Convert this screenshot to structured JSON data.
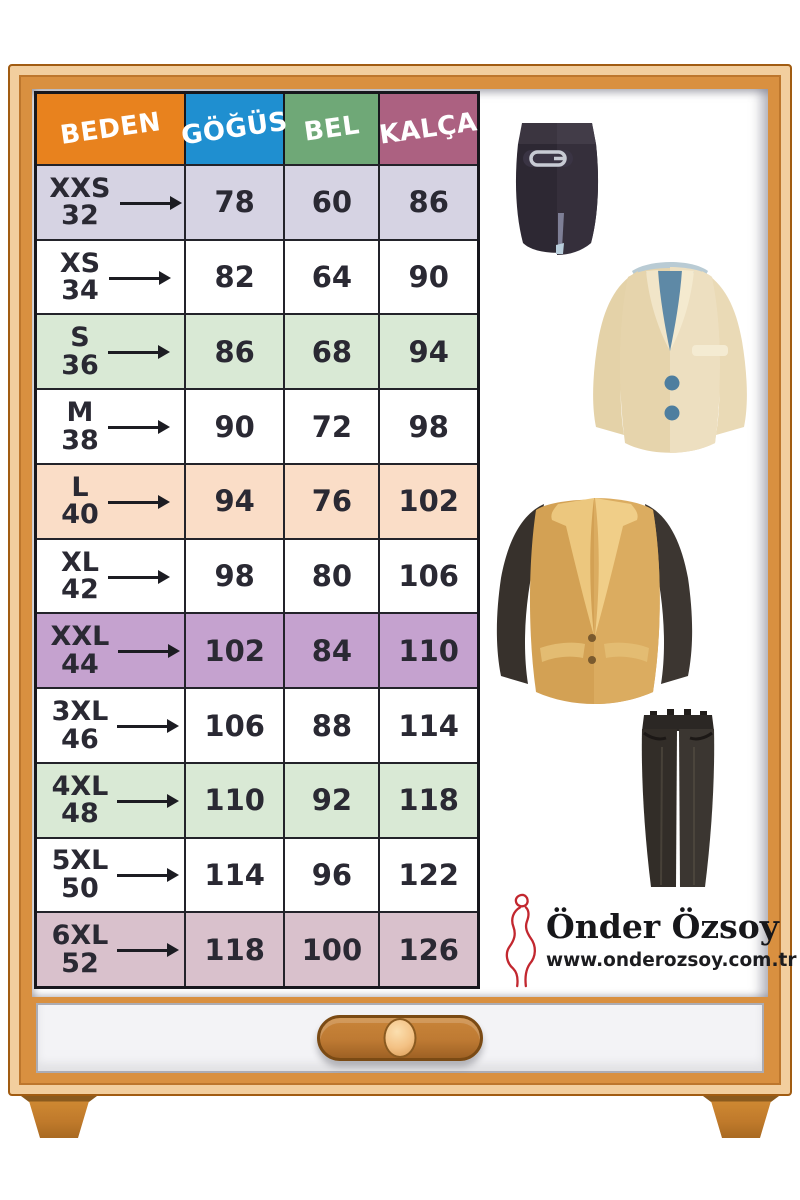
{
  "chart_data": {
    "type": "table",
    "columns": [
      "BEDEN",
      "GÖĞÜS",
      "BEL",
      "KALÇA"
    ],
    "rows": [
      [
        "XXS / 32",
        78,
        60,
        86
      ],
      [
        "XS / 34",
        82,
        64,
        90
      ],
      [
        "S / 36",
        86,
        68,
        94
      ],
      [
        "M / 38",
        90,
        72,
        98
      ],
      [
        "L / 40",
        94,
        76,
        102
      ],
      [
        "XL / 42",
        98,
        80,
        106
      ],
      [
        "XXL / 44",
        102,
        84,
        110
      ],
      [
        "3XL / 46",
        106,
        88,
        114
      ],
      [
        "4XL / 48",
        110,
        92,
        118
      ],
      [
        "5XL / 50",
        114,
        96,
        122
      ],
      [
        "6XL / 52",
        118,
        100,
        126
      ]
    ]
  },
  "table": {
    "header": [
      {
        "label": "BEDEN",
        "bg": "#E8821E"
      },
      {
        "label": "GÖĞÜS",
        "bg": "#1F8FD0"
      },
      {
        "label": "BEL",
        "bg": "#6FA877"
      },
      {
        "label": "KALÇA",
        "bg": "#AC6181"
      }
    ],
    "rows": [
      {
        "size": "XXS",
        "euro": "32",
        "chest": "78",
        "waist": "60",
        "hip": "86",
        "bg": "#D6D3E3"
      },
      {
        "size": "XS",
        "euro": "34",
        "chest": "82",
        "waist": "64",
        "hip": "90",
        "bg": "#FFFFFF"
      },
      {
        "size": "S",
        "euro": "36",
        "chest": "86",
        "waist": "68",
        "hip": "94",
        "bg": "#D9E9D5"
      },
      {
        "size": "M",
        "euro": "38",
        "chest": "90",
        "waist": "72",
        "hip": "98",
        "bg": "#FFFFFF"
      },
      {
        "size": "L",
        "euro": "40",
        "chest": "94",
        "waist": "76",
        "hip": "102",
        "bg": "#FADDC7"
      },
      {
        "size": "XL",
        "euro": "42",
        "chest": "98",
        "waist": "80",
        "hip": "106",
        "bg": "#FFFFFF"
      },
      {
        "size": "XXL",
        "euro": "44",
        "chest": "102",
        "waist": "84",
        "hip": "110",
        "bg": "#C5A2CF"
      },
      {
        "size": "3XL",
        "euro": "46",
        "chest": "106",
        "waist": "88",
        "hip": "114",
        "bg": "#FFFFFF"
      },
      {
        "size": "4XL",
        "euro": "48",
        "chest": "110",
        "waist": "92",
        "hip": "118",
        "bg": "#D9E9D5"
      },
      {
        "size": "5XL",
        "euro": "50",
        "chest": "114",
        "waist": "96",
        "hip": "122",
        "bg": "#FFFFFF"
      },
      {
        "size": "6XL",
        "euro": "52",
        "chest": "118",
        "waist": "100",
        "hip": "126",
        "bg": "#D9C1CC"
      }
    ]
  },
  "brand": {
    "name": "Önder Özsoy",
    "website": "www.onderozsoy.com.tr",
    "logo_color": "#C2272F"
  },
  "icons": [
    "skirt-icon",
    "beige-blazer-icon",
    "tan-blazer-icon",
    "trousers-icon",
    "woman-silhouette-icon"
  ],
  "colors": {
    "cabinet_orange": "#D99040",
    "cabinet_dark": "#A15C12",
    "cabinet_light": "#F2CE9E",
    "table_border": "#17171d",
    "text_dark": "#2a2933"
  }
}
